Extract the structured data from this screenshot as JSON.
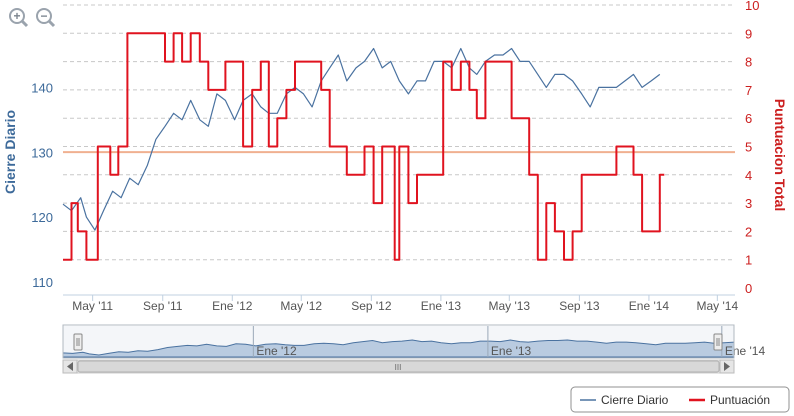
{
  "chart_data": {
    "type": "line",
    "ylabel_left": "Cierre Diario",
    "ylabel_right": "Puntuacion Total",
    "left_axis": {
      "ylim": [
        108,
        149
      ],
      "ticks": [
        110,
        120,
        130,
        140
      ]
    },
    "right_axis": {
      "ylim": [
        0,
        10
      ],
      "ticks": [
        0,
        1,
        2,
        3,
        4,
        5,
        6,
        7,
        8,
        9,
        10
      ]
    },
    "x_range": [
      "2011-03-10",
      "2014-06-01"
    ],
    "x_ticks": [
      {
        "date": "2011-05-01",
        "label": "May '11"
      },
      {
        "date": "2011-09-01",
        "label": "Sep '11"
      },
      {
        "date": "2012-01-01",
        "label": "Ene '12"
      },
      {
        "date": "2012-05-01",
        "label": "May '12"
      },
      {
        "date": "2012-09-01",
        "label": "Sep '12"
      },
      {
        "date": "2013-01-01",
        "label": "Ene '13"
      },
      {
        "date": "2013-05-01",
        "label": "May '13"
      },
      {
        "date": "2013-09-01",
        "label": "Sep '13"
      },
      {
        "date": "2014-01-01",
        "label": "Ene '14"
      },
      {
        "date": "2014-05-01",
        "label": "May '14"
      }
    ],
    "grid": true,
    "reference_line": {
      "axis": "right",
      "value": 4.8,
      "color": "#f0b090"
    },
    "legend_position": "bottom-right",
    "series": [
      {
        "name": "Cierre Diario",
        "axis": "left",
        "color": "#4a72a0",
        "x": [
          "2011-03-10",
          "2011-03-25",
          "2011-04-10",
          "2011-04-20",
          "2011-05-05",
          "2011-05-20",
          "2011-06-05",
          "2011-06-20",
          "2011-07-05",
          "2011-07-20",
          "2011-08-05",
          "2011-08-20",
          "2011-09-05",
          "2011-09-20",
          "2011-10-05",
          "2011-10-20",
          "2011-11-05",
          "2011-11-20",
          "2011-12-05",
          "2011-12-20",
          "2012-01-05",
          "2012-01-20",
          "2012-02-05",
          "2012-02-20",
          "2012-03-05",
          "2012-03-20",
          "2012-04-05",
          "2012-04-20",
          "2012-05-05",
          "2012-05-20",
          "2012-06-05",
          "2012-06-20",
          "2012-07-05",
          "2012-07-20",
          "2012-08-05",
          "2012-08-20",
          "2012-09-05",
          "2012-09-20",
          "2012-10-05",
          "2012-10-20",
          "2012-11-05",
          "2012-11-20",
          "2012-12-05",
          "2012-12-20",
          "2013-01-05",
          "2013-01-20",
          "2013-02-05",
          "2013-02-20",
          "2013-03-05",
          "2013-03-20",
          "2013-04-05",
          "2013-04-20",
          "2013-05-05",
          "2013-05-20",
          "2013-06-05",
          "2013-06-20",
          "2013-07-05",
          "2013-07-20",
          "2013-08-05",
          "2013-08-20",
          "2013-09-05",
          "2013-09-20",
          "2013-10-05",
          "2013-10-20",
          "2013-11-05",
          "2013-11-20",
          "2013-12-05",
          "2013-12-20",
          "2014-01-05",
          "2014-01-20"
        ],
        "values": [
          122,
          121,
          123,
          120,
          118,
          121,
          124,
          123,
          126,
          125,
          128,
          132,
          134,
          136,
          135,
          138,
          135,
          134,
          139,
          138,
          135,
          138,
          139,
          137,
          136,
          136,
          139,
          140,
          139,
          137,
          141,
          143,
          145,
          141,
          143,
          144,
          146,
          143,
          144,
          141,
          139,
          141,
          141,
          144,
          144,
          143,
          146,
          143,
          142,
          144,
          145,
          145,
          146,
          144,
          144,
          142,
          140,
          142,
          142,
          141,
          139,
          137,
          140,
          140,
          140,
          141,
          142,
          140,
          141,
          142
        ]
      },
      {
        "name": "Puntuación",
        "axis": "right",
        "color": "#e0131f",
        "step": true,
        "x": [
          "2011-03-10",
          "2011-03-25",
          "2011-04-05",
          "2011-04-20",
          "2011-05-10",
          "2011-06-01",
          "2011-06-15",
          "2011-07-01",
          "2011-07-15",
          "2011-08-20",
          "2011-09-05",
          "2011-09-20",
          "2011-10-05",
          "2011-10-20",
          "2011-11-05",
          "2011-11-20",
          "2011-12-01",
          "2011-12-20",
          "2012-01-05",
          "2012-01-20",
          "2012-02-05",
          "2012-02-20",
          "2012-03-05",
          "2012-03-20",
          "2012-04-05",
          "2012-04-20",
          "2012-05-05",
          "2012-05-20",
          "2012-06-05",
          "2012-06-20",
          "2012-07-05",
          "2012-07-20",
          "2012-08-05",
          "2012-08-20",
          "2012-09-05",
          "2012-09-20",
          "2012-10-05",
          "2012-10-12",
          "2012-10-20",
          "2012-11-05",
          "2012-11-20",
          "2012-12-05",
          "2012-12-20",
          "2013-01-05",
          "2013-01-20",
          "2013-02-05",
          "2013-02-20",
          "2013-03-05",
          "2013-03-20",
          "2013-04-05",
          "2013-04-20",
          "2013-05-05",
          "2013-05-20",
          "2013-06-05",
          "2013-06-20",
          "2013-07-05",
          "2013-07-20",
          "2013-08-05",
          "2013-08-20",
          "2013-09-05",
          "2013-09-20",
          "2013-10-05",
          "2013-10-20",
          "2013-11-05",
          "2013-11-20",
          "2013-12-05",
          "2013-12-20",
          "2014-01-05",
          "2014-01-20"
        ],
        "values": [
          1,
          3,
          2,
          1,
          5,
          4,
          5,
          9,
          9,
          9,
          8,
          9,
          8,
          9,
          8,
          7,
          7,
          8,
          8,
          5,
          7,
          8,
          5,
          6,
          7,
          8,
          8,
          8,
          7,
          5,
          5,
          4,
          4,
          5,
          3,
          5,
          5,
          1,
          5,
          3,
          4,
          4,
          4,
          8,
          7,
          8,
          7,
          6,
          8,
          8,
          8,
          6,
          6,
          4,
          1,
          3,
          2,
          1,
          2,
          4,
          4,
          4,
          4,
          5,
          5,
          4,
          2,
          2,
          4
        ]
      }
    ]
  },
  "navigator": {
    "labels": [
      {
        "date": "2012-01-01",
        "label": "Ene '12"
      },
      {
        "date": "2013-01-01",
        "label": "Ene '13"
      },
      {
        "date": "2014-01-01",
        "label": "Ene '14"
      }
    ],
    "scrollbar_grip": "III"
  },
  "zoom": {
    "in_symbol": "+",
    "out_symbol": "−"
  },
  "colors": {
    "price": "#4a72a0",
    "score": "#e0131f",
    "navigator_fill": "#b9cbe0",
    "grid": "#c8c8c8"
  }
}
